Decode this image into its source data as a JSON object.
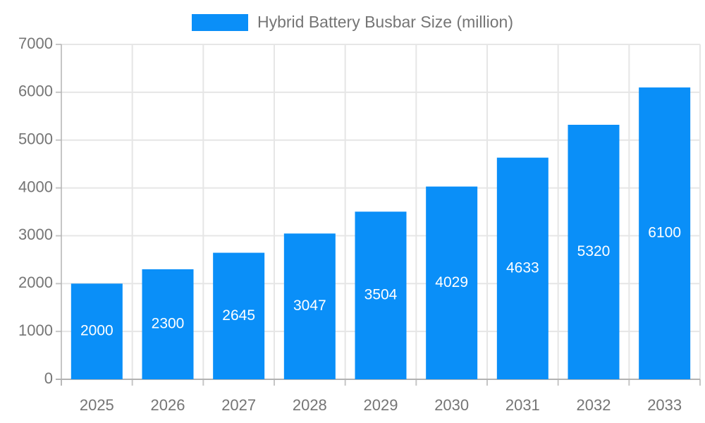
{
  "chart_data": {
    "type": "bar",
    "title": "Hybrid Battery Busbar Size (million)",
    "legend_position": "top",
    "categories": [
      "2025",
      "2026",
      "2027",
      "2028",
      "2029",
      "2030",
      "2031",
      "2032",
      "2033"
    ],
    "values": [
      2000,
      2300,
      2645,
      3047,
      3504,
      4029,
      4633,
      5320,
      6100
    ],
    "bar_labels": [
      "2000",
      "2300",
      "2645",
      "3047",
      "3504",
      "4029",
      "4633",
      "5320",
      "6100"
    ],
    "xlabel": "",
    "ylabel": "",
    "ylim": [
      0,
      7000
    ],
    "ytick_step": 1000,
    "yticks": [
      "0",
      "1000",
      "2000",
      "3000",
      "4000",
      "5000",
      "6000",
      "7000"
    ],
    "grid": true,
    "colors": {
      "bar": "#0a8ff8",
      "bar_label_text": "#ffffff",
      "grid_line": "#e6e6e6",
      "axis_line": "#b3b3b3",
      "tick_mark": "#c6c6c6",
      "axis_text": "#757575",
      "background": "#ffffff"
    }
  }
}
